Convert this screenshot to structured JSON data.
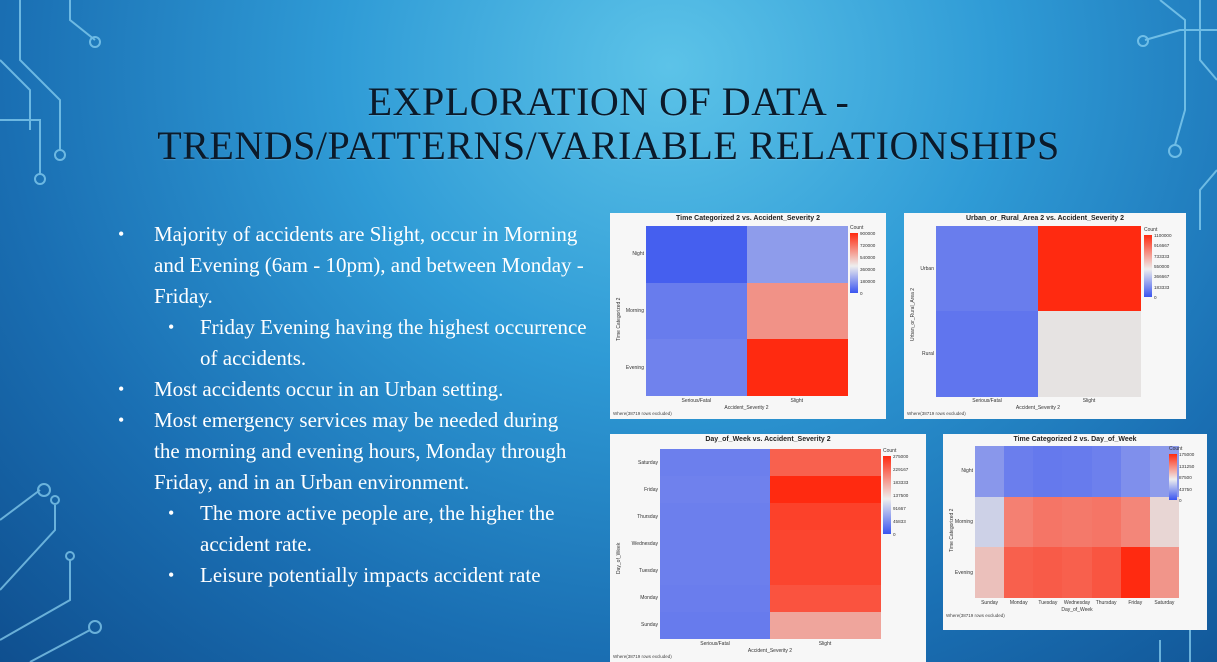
{
  "slide": {
    "title_line1": "EXPLORATION OF DATA -",
    "title_line2": "TRENDS/PATTERNS/VARIABLE RELATIONSHIPS",
    "bullets": [
      {
        "level": 1,
        "text": "Majority of accidents are Slight, occur in Morning and Evening (6am - 10pm), and between Monday - Friday."
      },
      {
        "level": 2,
        "text": "Friday Evening having the highest occurrence of accidents."
      },
      {
        "level": 1,
        "text": "Most accidents occur in an Urban setting."
      },
      {
        "level": 1,
        "text": "Most emergency services may be needed during the morning and evening hours, Monday through Friday, and in an Urban environment."
      },
      {
        "level": 2,
        "text": "The more active people are, the higher the accident rate."
      },
      {
        "level": 2,
        "text": "Leisure potentially impacts accident rate"
      }
    ],
    "bullet_glyph": "•"
  },
  "chart_data": [
    {
      "type": "heatmap",
      "title": "Time Categorized 2 vs. Accident_Severity 2",
      "xlabel": "Accident_Severity 2",
      "ylabel": "Time Categorized 2",
      "x": [
        "Serious/Fatal",
        "Slight"
      ],
      "y": [
        "Night",
        "Morning",
        "Evening"
      ],
      "values": [
        [
          30000,
          220000
        ],
        [
          120000,
          650000
        ],
        [
          140000,
          900000
        ]
      ],
      "legend_title": "Count",
      "legend_ticks": [
        "900000",
        "720000",
        "540000",
        "360000",
        "180000",
        "0"
      ],
      "vmin": 0,
      "vmax": 900000,
      "footnote": "Where(38719 rows excluded)"
    },
    {
      "type": "heatmap",
      "title": "Urban_or_Rural_Area 2 vs. Accident_Severity 2",
      "xlabel": "Accident_Severity 2",
      "ylabel": "Urban_or_Rural_Area 2",
      "x": [
        "Serious/Fatal",
        "Slight"
      ],
      "y": [
        "Urban",
        "Rural"
      ],
      "values": [
        [
          150000,
          1100000
        ],
        [
          120000,
          560000
        ]
      ],
      "legend_title": "Count",
      "legend_ticks": [
        "1100000",
        "916667",
        "733333",
        "550000",
        "366667",
        "183333",
        "0"
      ],
      "vmin": 0,
      "vmax": 1100000,
      "footnote": "Where(38719 rows excluded)"
    },
    {
      "type": "heatmap",
      "title": "Day_of_Week vs. Accident_Severity 2",
      "xlabel": "Accident_Severity 2",
      "ylabel": "Day_of_Week",
      "x": [
        "Serious/Fatal",
        "Slight"
      ],
      "y": [
        "Saturday",
        "Friday",
        "Thursday",
        "Wednesday",
        "Tuesday",
        "Monday",
        "Sunday"
      ],
      "values": [
        [
          40000,
          235000
        ],
        [
          42000,
          275000
        ],
        [
          40000,
          258000
        ],
        [
          40000,
          255000
        ],
        [
          40000,
          255000
        ],
        [
          38000,
          245000
        ],
        [
          36000,
          185000
        ]
      ],
      "legend_title": "Count",
      "legend_ticks": [
        "275000",
        "229167",
        "183333",
        "137500",
        "91667",
        "45833",
        "0"
      ],
      "vmin": 0,
      "vmax": 275000,
      "footnote": "Where(38719 rows excluded)"
    },
    {
      "type": "heatmap",
      "title": "Time Categorized 2 vs. Day_of_Week",
      "xlabel": "Day_of_Week",
      "ylabel": "Time Categorized 2",
      "x": [
        "Sunday",
        "Monday",
        "Tuesday",
        "Wednesday",
        "Thursday",
        "Friday",
        "Saturday"
      ],
      "y": [
        "Night",
        "Morning",
        "Evening"
      ],
      "values": [
        [
          40000,
          25000,
          22000,
          23000,
          26000,
          35000,
          42000
        ],
        [
          75000,
          135000,
          140000,
          138000,
          140000,
          132000,
          95000
        ],
        [
          105000,
          150000,
          152000,
          150000,
          155000,
          175000,
          125000
        ]
      ],
      "legend_title": "Count",
      "legend_ticks": [
        "175000",
        "131250",
        "87500",
        "43750",
        "0"
      ],
      "vmin": 0,
      "vmax": 175000,
      "footnote": "Where(38719 rows excluded)"
    }
  ]
}
